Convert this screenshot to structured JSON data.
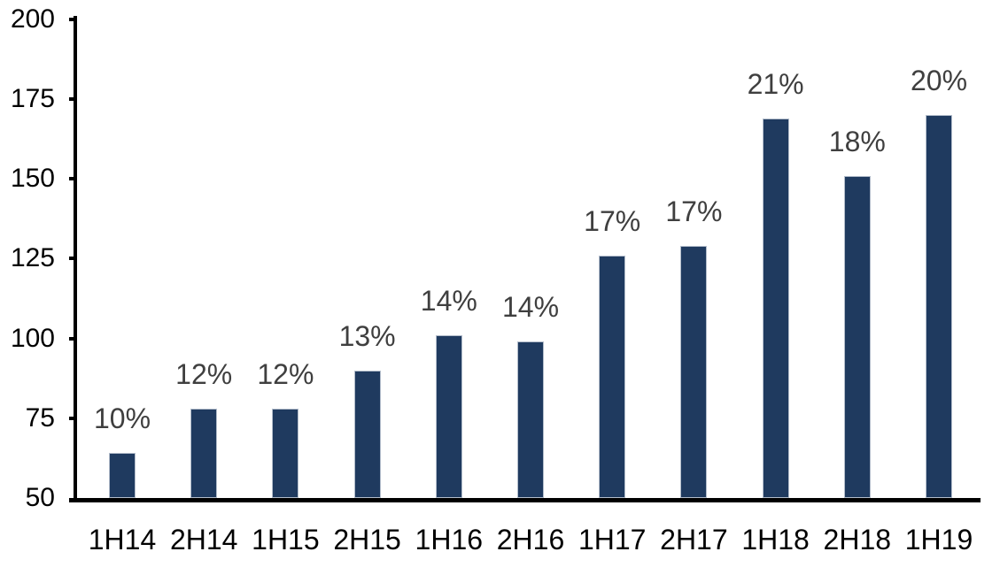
{
  "chart_data": {
    "type": "bar",
    "categories": [
      "1H14",
      "2H14",
      "1H15",
      "2H15",
      "1H16",
      "2H16",
      "1H17",
      "2H17",
      "1H18",
      "2H18",
      "1H19"
    ],
    "values": [
      64,
      78,
      78,
      90,
      101,
      99,
      126,
      129,
      169,
      151,
      170
    ],
    "data_labels": [
      "10%",
      "12%",
      "12%",
      "13%",
      "14%",
      "14%",
      "17%",
      "17%",
      "21%",
      "18%",
      "20%"
    ],
    "title": "",
    "xlabel": "",
    "ylabel": "",
    "ylim": [
      50,
      200
    ],
    "yticks": [
      200,
      175,
      150,
      125,
      100,
      75,
      50
    ],
    "grid": false,
    "legend": false,
    "bar_color": "#1f3a5f",
    "bar_edge_color": "#b3bdcb",
    "data_label_color": "#3f3f3f",
    "axis_color": "#000000"
  }
}
